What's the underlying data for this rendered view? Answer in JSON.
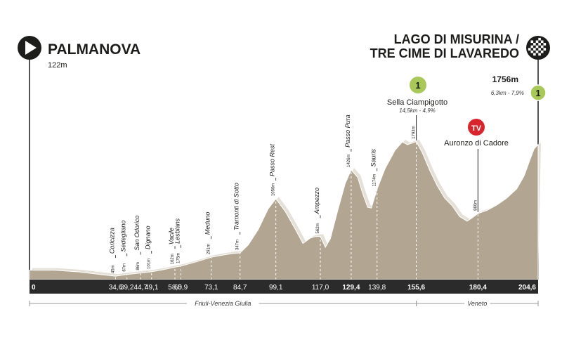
{
  "start": {
    "name": "PALMANOVA",
    "altitude": "122m",
    "icon": "play-icon"
  },
  "finish": {
    "name_line1": "LAGO DI MISURINA /",
    "name_line2": "TRE CIME DI LAVAREDO",
    "altitude": "1756m",
    "climb_stats": "6,3km - 7,9%",
    "category": "1",
    "icon": "checkered-flag-icon"
  },
  "climb": {
    "category": "1",
    "name": "Sella Ciampigotto",
    "stats": "14,5km - 4,9%"
  },
  "tv": {
    "label": "TV",
    "name": "Auronzo di Cadore"
  },
  "regions": [
    {
      "name": "Friuli-Venezia Giulia",
      "from_km": 0,
      "to_km": 155.6
    },
    {
      "name": "Veneto",
      "from_km": 155.6,
      "to_km": 204.6
    }
  ],
  "colors": {
    "profile_fill": "#b2a692",
    "profile_edge": "#ffffff",
    "km_bar": "#2b2b2b",
    "climb_badge": "#a8c85a",
    "tv_badge": "#d7262e",
    "text": "#1d1d1b"
  },
  "chart_data": {
    "type": "area",
    "xlim": [
      0,
      204.6
    ],
    "ylim": [
      0,
      1900
    ],
    "km_ticks": [
      {
        "value": 0,
        "label": "0",
        "bold": true
      },
      {
        "value": 34.6,
        "label": "34,6",
        "bold": false
      },
      {
        "value": 39.2,
        "label": "39,2",
        "bold": false
      },
      {
        "value": 44.7,
        "label": "44,7",
        "bold": false
      },
      {
        "value": 49.1,
        "label": "49,1",
        "bold": false
      },
      {
        "value": 58.5,
        "label": "58,5",
        "bold": false
      },
      {
        "value": 60.9,
        "label": "60,9",
        "bold": false
      },
      {
        "value": 73.1,
        "label": "73,1",
        "bold": false
      },
      {
        "value": 84.7,
        "label": "84,7",
        "bold": false
      },
      {
        "value": 99.1,
        "label": "99,1",
        "bold": false
      },
      {
        "value": 117.0,
        "label": "117,0",
        "bold": false
      },
      {
        "value": 129.4,
        "label": "129,4",
        "bold": true
      },
      {
        "value": 139.8,
        "label": "139,8",
        "bold": false
      },
      {
        "value": 155.6,
        "label": "155,6",
        "bold": true
      },
      {
        "value": 180.4,
        "label": "180,4",
        "bold": true
      },
      {
        "value": 204.6,
        "label": "204,6",
        "bold": true
      }
    ],
    "waypoints": [
      {
        "km": 34.6,
        "name": "Corlcizza",
        "elevation": 45,
        "elev_label": "45m"
      },
      {
        "km": 39.2,
        "name": "Sedegliano",
        "elevation": 67,
        "elev_label": "67m"
      },
      {
        "km": 44.7,
        "name": "San Odorico",
        "elevation": 86,
        "elev_label": "86m"
      },
      {
        "km": 49.1,
        "name": "Dignano",
        "elevation": 101,
        "elev_label": "101m"
      },
      {
        "km": 58.5,
        "name": "Vacile",
        "elevation": 162,
        "elev_label": "162m"
      },
      {
        "km": 60.9,
        "name": "Lesbians",
        "elevation": 175,
        "elev_label": "175m"
      },
      {
        "km": 73.1,
        "name": "Meduno",
        "elevation": 291,
        "elev_label": "291m"
      },
      {
        "km": 84.7,
        "name": "Tramonti di Sotto",
        "elevation": 347,
        "elev_label": "347m"
      },
      {
        "km": 99.1,
        "name": "Passo Rest",
        "elevation": 1050,
        "elev_label": "1050m"
      },
      {
        "km": 117.0,
        "name": "Ampezzo",
        "elevation": 562,
        "elev_label": "562m"
      },
      {
        "km": 129.4,
        "name": "Passo Pura",
        "elevation": 1426,
        "elev_label": "1426m"
      },
      {
        "km": 139.8,
        "name": "Sauris",
        "elevation": 1174,
        "elev_label": "1174m"
      },
      {
        "km": 155.6,
        "name": "",
        "elevation": 1793,
        "elev_label": "1793m"
      },
      {
        "km": 180.4,
        "name": "",
        "elevation": 860,
        "elev_label": "860m"
      }
    ],
    "profile": [
      [
        0,
        122
      ],
      [
        10,
        122
      ],
      [
        20,
        100
      ],
      [
        30,
        60
      ],
      [
        34.6,
        45
      ],
      [
        39.2,
        67
      ],
      [
        44.7,
        86
      ],
      [
        49.1,
        101
      ],
      [
        54,
        130
      ],
      [
        58.5,
        162
      ],
      [
        60.9,
        175
      ],
      [
        67,
        230
      ],
      [
        73.1,
        291
      ],
      [
        78,
        320
      ],
      [
        82,
        340
      ],
      [
        84.7,
        347
      ],
      [
        88,
        450
      ],
      [
        92,
        650
      ],
      [
        96,
        920
      ],
      [
        99.1,
        1050
      ],
      [
        103,
        880
      ],
      [
        107,
        650
      ],
      [
        110,
        470
      ],
      [
        113,
        540
      ],
      [
        115,
        560
      ],
      [
        117,
        562
      ],
      [
        119,
        420
      ],
      [
        121,
        530
      ],
      [
        124,
        900
      ],
      [
        127,
        1250
      ],
      [
        129.4,
        1426
      ],
      [
        132,
        1330
      ],
      [
        134,
        1120
      ],
      [
        136,
        940
      ],
      [
        137.5,
        930
      ],
      [
        139.8,
        1174
      ],
      [
        143,
        1440
      ],
      [
        147,
        1680
      ],
      [
        150,
        1790
      ],
      [
        152,
        1755
      ],
      [
        155.6,
        1793
      ],
      [
        158,
        1650
      ],
      [
        161,
        1420
      ],
      [
        164,
        1220
      ],
      [
        167,
        1060
      ],
      [
        170,
        960
      ],
      [
        173,
        820
      ],
      [
        176,
        760
      ],
      [
        178,
        800
      ],
      [
        180.4,
        860
      ],
      [
        184,
        900
      ],
      [
        188,
        970
      ],
      [
        192,
        1060
      ],
      [
        196,
        1180
      ],
      [
        199,
        1350
      ],
      [
        201,
        1530
      ],
      [
        203,
        1700
      ],
      [
        204.6,
        1756
      ]
    ]
  }
}
